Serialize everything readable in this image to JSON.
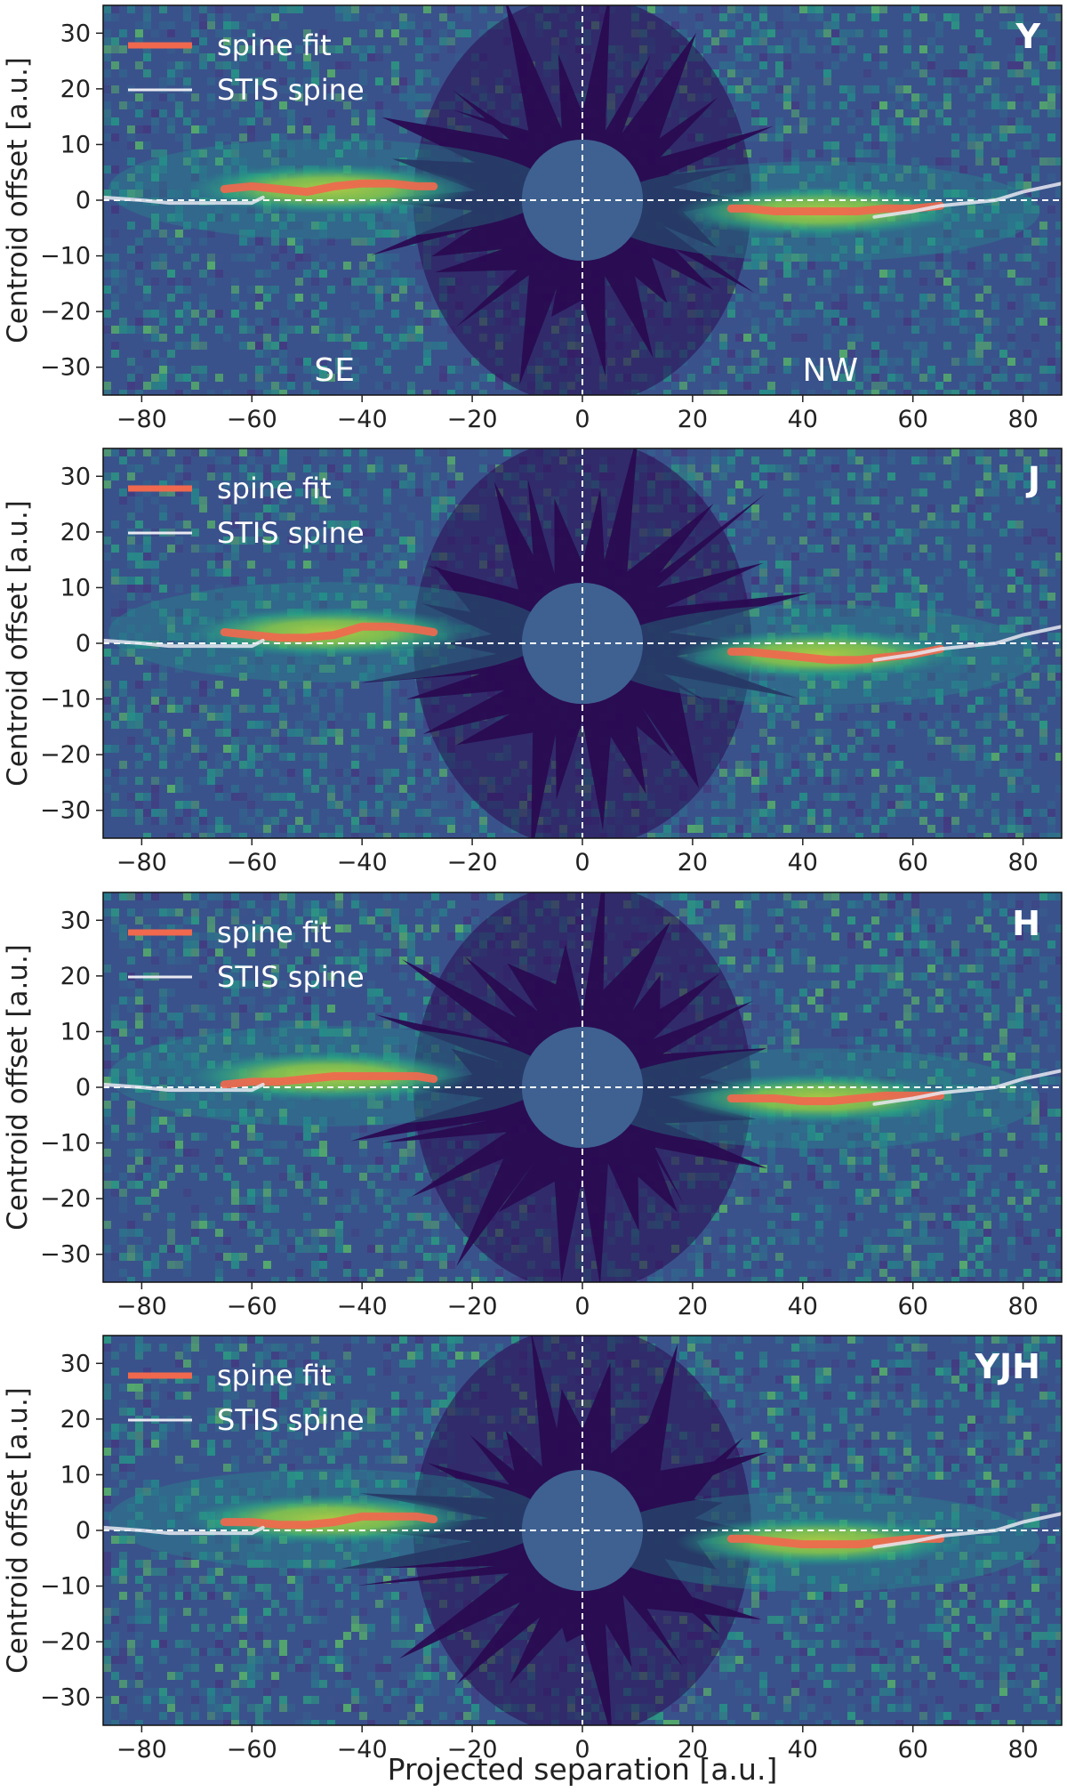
{
  "figure": {
    "xlabel": "Projected separation [a.u.]",
    "ylabel": "Centroid offset [a.u.]",
    "colors": {
      "background": "#3a528b",
      "dark_region": "#2a0b52",
      "mask": "#3e6191",
      "spine_fit": "#f0684e",
      "stis_spine": "#e9e9f2",
      "guide_line": "#ffffff",
      "bright": "#f5e61e"
    }
  },
  "chart_data": [
    {
      "type": "heatmap",
      "panel_label": "Y",
      "legend": [
        "spine fit",
        "STIS spine"
      ],
      "legend_position": "top-left",
      "side_labels": [
        "SE",
        "NW"
      ],
      "xlim": [
        -87,
        87
      ],
      "ylim": [
        -35,
        35
      ],
      "xticks": [
        -80,
        -60,
        -40,
        -20,
        0,
        20,
        40,
        60,
        80
      ],
      "yticks": [
        30,
        20,
        10,
        0,
        -10,
        -20,
        -30
      ],
      "mask_radius": 11,
      "series": [
        {
          "name": "spine fit",
          "segments": [
            {
              "x": [
                -65,
                -60,
                -55,
                -50,
                -45,
                -40,
                -35,
                -30,
                -27
              ],
              "y": [
                2,
                2.5,
                2,
                1.5,
                2.5,
                3,
                3,
                2.5,
                2.5
              ]
            },
            {
              "x": [
                27,
                30,
                35,
                40,
                45,
                50,
                55,
                60,
                65
              ],
              "y": [
                -1.5,
                -1.5,
                -2,
                -2,
                -2,
                -2,
                -1.5,
                -1.5,
                -1
              ]
            }
          ]
        },
        {
          "name": "STIS spine",
          "segments": [
            {
              "x": [
                -87,
                -80,
                -75,
                -70,
                -65,
                -60,
                -58
              ],
              "y": [
                0.5,
                0,
                -0.5,
                -0.5,
                -0.5,
                -0.5,
                0.5
              ]
            },
            {
              "x": [
                53,
                60,
                65,
                70,
                75,
                80,
                87
              ],
              "y": [
                -3,
                -2,
                -1,
                -0.5,
                0,
                1.5,
                3
              ]
            }
          ]
        }
      ]
    },
    {
      "type": "heatmap",
      "panel_label": "J",
      "legend": [
        "spine fit",
        "STIS spine"
      ],
      "legend_position": "top-left",
      "xlim": [
        -87,
        87
      ],
      "ylim": [
        -35,
        35
      ],
      "xticks": [
        -80,
        -60,
        -40,
        -20,
        0,
        20,
        40,
        60,
        80
      ],
      "yticks": [
        30,
        20,
        10,
        0,
        -10,
        -20,
        -30
      ],
      "mask_radius": 11,
      "series": [
        {
          "name": "spine fit",
          "segments": [
            {
              "x": [
                -65,
                -60,
                -55,
                -50,
                -45,
                -40,
                -35,
                -30,
                -27
              ],
              "y": [
                2,
                1.5,
                1,
                1,
                1.5,
                3,
                3,
                2.5,
                2
              ]
            },
            {
              "x": [
                27,
                30,
                35,
                40,
                45,
                50,
                55,
                60,
                65
              ],
              "y": [
                -1.5,
                -1.5,
                -2,
                -2.5,
                -3,
                -3,
                -2.5,
                -2,
                -1
              ]
            }
          ]
        },
        {
          "name": "STIS spine",
          "segments": [
            {
              "x": [
                -87,
                -80,
                -75,
                -70,
                -65,
                -60,
                -58
              ],
              "y": [
                0.5,
                0,
                -0.5,
                -0.5,
                -0.5,
                -0.5,
                0.5
              ]
            },
            {
              "x": [
                53,
                60,
                65,
                70,
                75,
                80,
                87
              ],
              "y": [
                -3,
                -2,
                -1,
                -0.5,
                0,
                1.5,
                3
              ]
            }
          ]
        }
      ]
    },
    {
      "type": "heatmap",
      "panel_label": "H",
      "legend": [
        "spine fit",
        "STIS spine"
      ],
      "legend_position": "top-left",
      "xlim": [
        -87,
        87
      ],
      "ylim": [
        -35,
        35
      ],
      "xticks": [
        -80,
        -60,
        -40,
        -20,
        0,
        20,
        40,
        60,
        80
      ],
      "yticks": [
        30,
        20,
        10,
        0,
        -10,
        -20,
        -30
      ],
      "mask_radius": 11,
      "series": [
        {
          "name": "spine fit",
          "segments": [
            {
              "x": [
                -65,
                -60,
                -55,
                -50,
                -45,
                -40,
                -35,
                -30,
                -27
              ],
              "y": [
                0.5,
                1,
                1,
                1.5,
                2,
                2,
                2,
                2,
                1.5
              ]
            },
            {
              "x": [
                27,
                30,
                35,
                40,
                45,
                50,
                55,
                60,
                65
              ],
              "y": [
                -2,
                -2,
                -2,
                -2.5,
                -2.5,
                -2,
                -1.5,
                -1.5,
                -1.5
              ]
            }
          ]
        },
        {
          "name": "STIS spine",
          "segments": [
            {
              "x": [
                -87,
                -80,
                -75,
                -70,
                -65,
                -60,
                -58
              ],
              "y": [
                0.5,
                0,
                -0.5,
                -0.5,
                -0.5,
                -0.5,
                0.5
              ]
            },
            {
              "x": [
                53,
                60,
                65,
                70,
                75,
                80,
                87
              ],
              "y": [
                -3,
                -2,
                -1,
                -0.5,
                0,
                1.5,
                3
              ]
            }
          ]
        }
      ]
    },
    {
      "type": "heatmap",
      "panel_label": "YJH",
      "legend": [
        "spine fit",
        "STIS spine"
      ],
      "legend_position": "top-left",
      "xlim": [
        -87,
        87
      ],
      "ylim": [
        -35,
        35
      ],
      "xticks": [
        -80,
        -60,
        -40,
        -20,
        0,
        20,
        40,
        60,
        80
      ],
      "yticks": [
        30,
        20,
        10,
        0,
        -10,
        -20,
        -30
      ],
      "mask_radius": 11,
      "series": [
        {
          "name": "spine fit",
          "segments": [
            {
              "x": [
                -65,
                -60,
                -55,
                -50,
                -45,
                -40,
                -35,
                -30,
                -27
              ],
              "y": [
                1.5,
                1.5,
                1,
                1,
                1.5,
                2.5,
                2.5,
                2.5,
                2
              ]
            },
            {
              "x": [
                27,
                30,
                35,
                40,
                45,
                50,
                55,
                60,
                65
              ],
              "y": [
                -1.5,
                -1.5,
                -2,
                -2.5,
                -2.5,
                -2.5,
                -2,
                -1.5,
                -1.5
              ]
            }
          ]
        },
        {
          "name": "STIS spine",
          "segments": [
            {
              "x": [
                -87,
                -80,
                -75,
                -70,
                -65,
                -60,
                -58
              ],
              "y": [
                0.5,
                0,
                -0.5,
                -0.5,
                -0.5,
                -0.5,
                0.5
              ]
            },
            {
              "x": [
                53,
                60,
                65,
                70,
                75,
                80,
                87
              ],
              "y": [
                -3,
                -2,
                -1,
                -0.5,
                0,
                1.5,
                3
              ]
            }
          ]
        }
      ]
    }
  ]
}
